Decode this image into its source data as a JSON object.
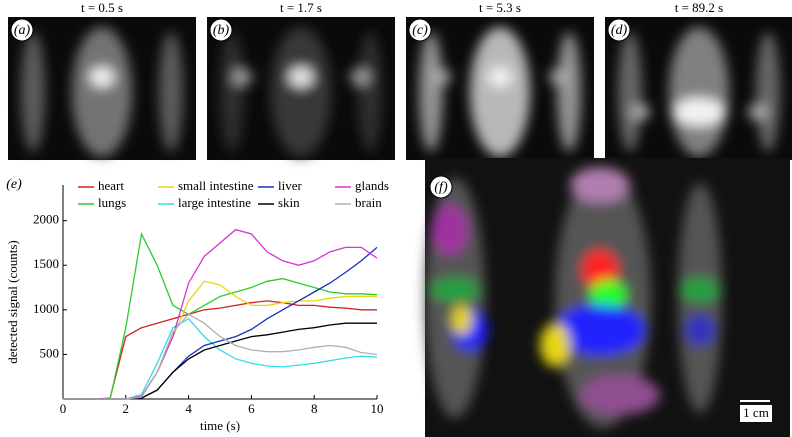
{
  "panels": [
    {
      "label": "(a)",
      "title": "t = 0.5 s"
    },
    {
      "label": "(b)",
      "title": "t = 1.7 s"
    },
    {
      "label": "(c)",
      "title": "t = 5.3 s"
    },
    {
      "label": "(d)",
      "title": "t = 89.2 s"
    }
  ],
  "chart_data": {
    "type": "line",
    "label": "(e)",
    "xlabel": "time (s)",
    "ylabel": "detected signal (counts)",
    "xlim": [
      0,
      10
    ],
    "xticks": [
      0,
      2,
      4,
      6,
      8,
      10
    ],
    "ylim": [
      0,
      2400
    ],
    "yticks": [
      500,
      1000,
      1500,
      2000
    ],
    "x": [
      0,
      0.5,
      1,
      1.5,
      2,
      2.5,
      3,
      3.5,
      4,
      4.5,
      5,
      5.5,
      6,
      6.5,
      7,
      7.5,
      8,
      8.5,
      9,
      9.5,
      10
    ],
    "series": [
      {
        "name": "heart",
        "color": "#d62020",
        "values": [
          0,
          0,
          0,
          10,
          700,
          800,
          850,
          900,
          950,
          1000,
          1020,
          1050,
          1080,
          1100,
          1080,
          1050,
          1050,
          1030,
          1020,
          1000,
          1000
        ]
      },
      {
        "name": "lungs",
        "color": "#2ecc2e",
        "values": [
          0,
          0,
          0,
          0,
          800,
          1850,
          1500,
          1050,
          950,
          1050,
          1150,
          1200,
          1250,
          1320,
          1350,
          1300,
          1250,
          1200,
          1180,
          1180,
          1170
        ]
      },
      {
        "name": "small intestine",
        "color": "#e6d619",
        "values": [
          0,
          0,
          0,
          0,
          0,
          30,
          300,
          700,
          1100,
          1320,
          1280,
          1150,
          1050,
          1050,
          1080,
          1100,
          1100,
          1130,
          1150,
          1150,
          1150
        ]
      },
      {
        "name": "large intestine",
        "color": "#33dde6",
        "values": [
          0,
          0,
          0,
          0,
          0,
          50,
          400,
          800,
          900,
          700,
          550,
          450,
          400,
          370,
          360,
          380,
          400,
          430,
          460,
          480,
          470
        ]
      },
      {
        "name": "liver",
        "color": "#1a2fc4",
        "values": [
          0,
          0,
          0,
          0,
          0,
          10,
          100,
          300,
          480,
          600,
          650,
          700,
          780,
          900,
          1000,
          1100,
          1200,
          1300,
          1420,
          1550,
          1700
        ]
      },
      {
        "name": "skin",
        "color": "#000000",
        "values": [
          0,
          0,
          0,
          0,
          0,
          10,
          100,
          300,
          450,
          550,
          600,
          650,
          700,
          720,
          750,
          780,
          800,
          830,
          850,
          850,
          850
        ]
      },
      {
        "name": "glands",
        "color": "#d633d6",
        "values": [
          0,
          0,
          0,
          0,
          0,
          30,
          300,
          700,
          1300,
          1600,
          1750,
          1900,
          1850,
          1650,
          1550,
          1500,
          1550,
          1650,
          1700,
          1700,
          1580
        ]
      },
      {
        "name": "brain",
        "color": "#b0b0b0",
        "values": [
          0,
          0,
          0,
          0,
          0,
          20,
          300,
          750,
          950,
          850,
          700,
          600,
          550,
          530,
          530,
          550,
          580,
          600,
          580,
          520,
          500
        ]
      }
    ]
  },
  "panel_f": {
    "label": "(f)",
    "scale_bar": "1 cm"
  }
}
